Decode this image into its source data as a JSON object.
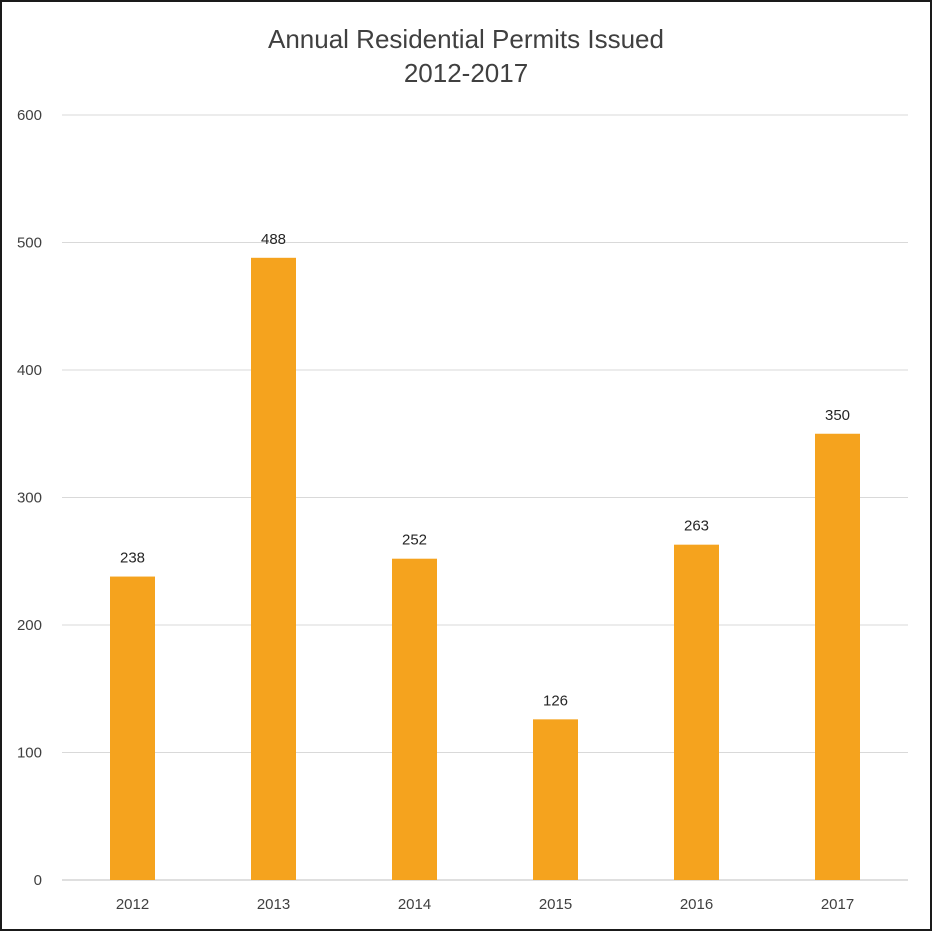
{
  "chart_data": {
    "type": "bar",
    "title": "Annual Residential Permits Issued",
    "subtitle": "2012-2017",
    "xlabel": "",
    "ylabel": "",
    "categories": [
      "2012",
      "2013",
      "2014",
      "2015",
      "2016",
      "2017"
    ],
    "values": [
      238,
      488,
      252,
      126,
      263,
      350
    ],
    "data_labels": [
      "238",
      "488",
      "252",
      "126",
      "263",
      "350"
    ],
    "ylim": [
      0,
      600
    ],
    "yticks": [
      "0",
      "100",
      "200",
      "300",
      "400",
      "500",
      "600"
    ],
    "grid": true,
    "legend": "none",
    "bar_color": "#F5A31E",
    "grid_color": "#D9D9D9"
  }
}
